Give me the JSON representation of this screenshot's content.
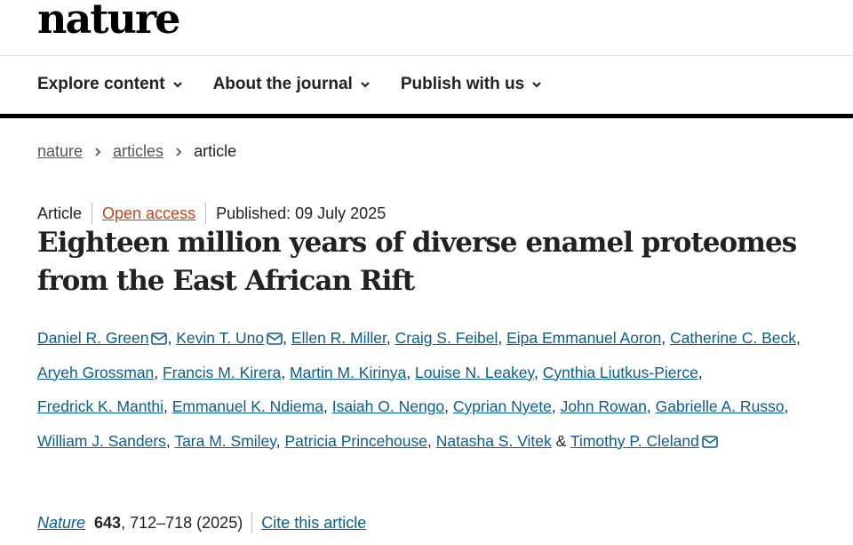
{
  "header": {
    "logo": "nature"
  },
  "nav": {
    "items": [
      "Explore content",
      "About the journal",
      "Publish with us"
    ]
  },
  "breadcrumb": {
    "items": [
      "nature",
      "articles",
      "article"
    ]
  },
  "article": {
    "type": "Article",
    "access": "Open access",
    "published": "Published: 09 July 2025",
    "title": "Eighteen million years of diverse enamel proteomes from the East African Rift",
    "separator": ",",
    "final_separator": "&",
    "authors": [
      {
        "name": "Daniel R. Green",
        "corresponding": true
      },
      {
        "name": "Kevin T. Uno",
        "corresponding": true
      },
      {
        "name": "Ellen R. Miller"
      },
      {
        "name": "Craig S. Feibel"
      },
      {
        "name": "Eipa Emmanuel Aoron"
      },
      {
        "name": "Catherine C. Beck"
      },
      {
        "name": "Aryeh Grossman"
      },
      {
        "name": "Francis M. Kirera"
      },
      {
        "name": "Martin M. Kirinya"
      },
      {
        "name": "Louise N. Leakey"
      },
      {
        "name": "Cynthia Liutkus-Pierce"
      },
      {
        "name": "Fredrick K. Manthi"
      },
      {
        "name": "Emmanuel K. Ndiema"
      },
      {
        "name": "Isaiah O. Nengo"
      },
      {
        "name": "Cyprian Nyete"
      },
      {
        "name": "John Rowan"
      },
      {
        "name": "Gabrielle A. Russo"
      },
      {
        "name": "William J. Sanders"
      },
      {
        "name": "Tara M. Smiley"
      },
      {
        "name": "Patricia Princehouse"
      },
      {
        "name": "Natasha S. Vitek"
      },
      {
        "name": "Timothy P. Cleland",
        "corresponding": true
      }
    ],
    "citation": {
      "journal": "Nature",
      "volume": "643",
      "separator": ",",
      "pages": "712–718 (2025)",
      "cite_link": "Cite this article"
    }
  }
}
